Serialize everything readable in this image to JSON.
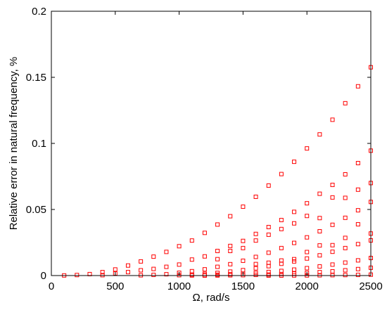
{
  "chart_data": {
    "type": "scatter",
    "title": "",
    "xlabel": "Ω, rad/s",
    "ylabel": "Relative error in natural frequency, %",
    "xlim": [
      0,
      2500
    ],
    "ylim": [
      0,
      0.2
    ],
    "x_ticks": [
      "0",
      "500",
      "1000",
      "1500",
      "2000",
      "2500"
    ],
    "y_ticks": [
      "0",
      "0.05",
      "0.1",
      "0.15",
      "0.2"
    ],
    "grid": false,
    "marker": "square-open",
    "color": "#ff0000",
    "series": [
      {
        "x": [
          100,
          200,
          300,
          400,
          500,
          600,
          700,
          800,
          900,
          1000,
          1100,
          1200,
          1300,
          1400,
          1500,
          1600,
          1700,
          1800,
          1900,
          2000,
          2100,
          2200,
          2300,
          2400,
          2500
        ],
        "values": [
          0.0001,
          0.0004,
          0.0011,
          0.0026,
          0.0046,
          0.0076,
          0.0107,
          0.0143,
          0.0179,
          0.0222,
          0.0265,
          0.0323,
          0.0386,
          0.0449,
          0.0521,
          0.0596,
          0.0681,
          0.0768,
          0.0861,
          0.0962,
          0.1068,
          0.1179,
          0.1304,
          0.1432,
          0.1576
        ]
      },
      {
        "x": [
          400,
          500,
          600,
          700,
          800,
          900,
          1000,
          1100,
          1200,
          1300,
          1400,
          1500,
          1600,
          1700,
          1800,
          1900,
          2000,
          2100,
          2200,
          2300,
          2400,
          2500
        ],
        "values": [
          0.0003,
          0.0016,
          0.0026,
          0.004,
          0.005,
          0.0066,
          0.0083,
          0.0121,
          0.0145,
          0.0186,
          0.0224,
          0.0262,
          0.0315,
          0.0367,
          0.042,
          0.0482,
          0.0547,
          0.0619,
          0.0686,
          0.0766,
          0.0851,
          0.0945
        ]
      },
      {
        "x": [
          1300,
          1400,
          1500,
          1600,
          1700,
          1800,
          1900,
          2000,
          2100,
          2200,
          2300,
          2400,
          2500
        ],
        "values": [
          0.0124,
          0.0186,
          0.0208,
          0.0265,
          0.0309,
          0.0352,
          0.0395,
          0.0451,
          0.0435,
          0.0591,
          0.0588,
          0.065,
          0.07
        ]
      },
      {
        "x": [
          700,
          800,
          900,
          1000,
          1100,
          1200,
          1300,
          1400,
          1500,
          1600,
          1700,
          1800,
          1900,
          2000,
          2100,
          2200,
          2300,
          2400,
          2500
        ],
        "values": [
          0.0002,
          0.0005,
          0.001,
          0.0021,
          0.0033,
          0.0047,
          0.0066,
          0.0086,
          0.0112,
          0.0141,
          0.0173,
          0.0208,
          0.0247,
          0.0289,
          0.0335,
          0.0384,
          0.0437,
          0.0494,
          0.0557
        ]
      },
      {
        "x": [
          1600,
          1700,
          1800,
          1900,
          2000,
          2100,
          2200,
          2300,
          2400,
          2500
        ],
        "values": [
          0.0087,
          0.0097,
          0.0114,
          0.0124,
          0.0178,
          0.0228,
          0.023,
          0.0285,
          0.0388,
          0.0318
        ]
      },
      {
        "x": [
          1000,
          1100,
          1200,
          1300,
          1400,
          1500,
          1600,
          1700,
          1800,
          1900,
          2000,
          2100,
          2200,
          2300,
          2400,
          2500
        ],
        "values": [
          0.0003,
          0.0007,
          0.0013,
          0.002,
          0.003,
          0.0041,
          0.0055,
          0.0071,
          0.0089,
          0.0107,
          0.0129,
          0.0153,
          0.018,
          0.0208,
          0.0238,
          0.0266
        ]
      },
      {
        "x": [
          1100,
          1200,
          1300,
          1400,
          1500,
          1600,
          1700,
          1800,
          1900,
          2000,
          2100,
          2200,
          2300,
          2400,
          2500
        ],
        "values": [
          0.0001,
          0.0003,
          0.0006,
          0.001,
          0.0014,
          0.002,
          0.0027,
          0.0035,
          0.0045,
          0.0056,
          0.0069,
          0.0083,
          0.0098,
          0.0115,
          0.0133
        ]
      },
      {
        "x": [
          1200,
          1300,
          1400,
          1500,
          1600,
          1700,
          1800,
          1900,
          2000,
          2100,
          2200,
          2300,
          2400,
          2500
        ],
        "values": [
          0.0,
          0.0001,
          0.0002,
          0.0003,
          0.0005,
          0.0008,
          0.0011,
          0.0015,
          0.002,
          0.0026,
          0.0032,
          0.004,
          0.0049,
          0.0059
        ]
      },
      {
        "x": [
          1700,
          1800,
          1900,
          2000,
          2100,
          2200,
          2300,
          2400,
          2500
        ],
        "values": [
          0.0,
          0.0,
          0.0001,
          0.0001,
          0.0002,
          0.0003,
          0.0004,
          0.0005,
          0.0007
        ]
      }
    ]
  }
}
